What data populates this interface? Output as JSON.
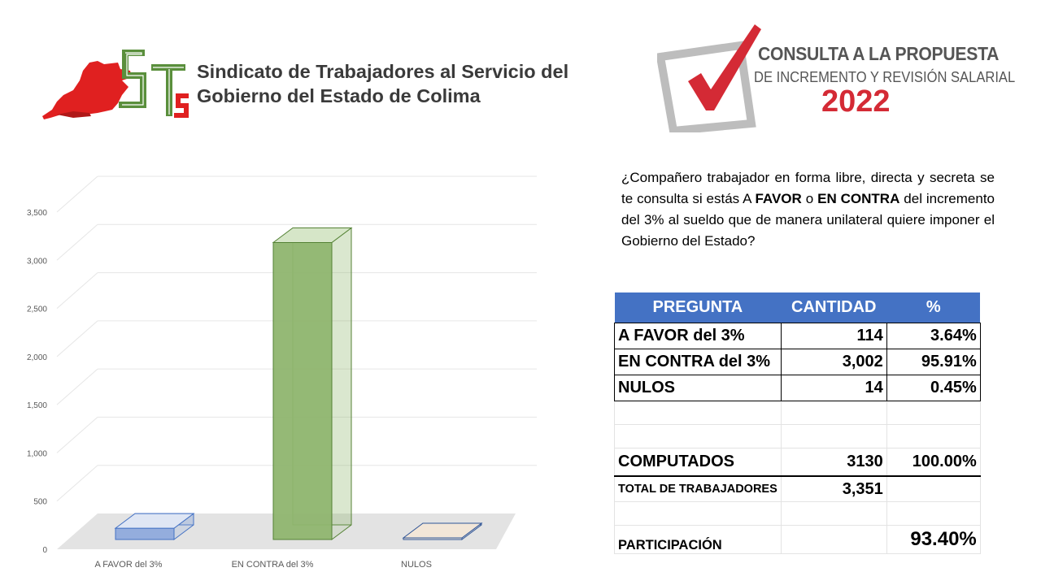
{
  "header": {
    "union_name_line1": "Sindicato de Trabajadores al Servicio del",
    "union_name_line2": "Gobierno del Estado de Colima",
    "campaign_line1": "CONSULTA A LA PROPUESTA",
    "campaign_line2": "DE INCREMENTO Y REVISIÓN SALARIAL",
    "campaign_year": "2022",
    "logo_icon": "union-logo-icon",
    "check_icon": "checkbox-check-icon"
  },
  "question": {
    "part1": "¿Compañero trabajador en forma libre, directa y secreta se te consulta si estás A ",
    "bold1": "FAVOR",
    "part2": " o ",
    "bold2": "EN CONTRA",
    "part3": " del incremento del 3% al sueldo que de manera unilateral  quiere imponer el Gobierno del Estado?"
  },
  "table": {
    "headers": [
      "PREGUNTA",
      "CANTIDAD",
      "%"
    ],
    "rows": [
      {
        "label": "A FAVOR del 3%",
        "count": "114",
        "pct": "3.64%"
      },
      {
        "label": "EN CONTRA del 3%",
        "count": "3,002",
        "pct": "95.91%"
      },
      {
        "label": "NULOS",
        "count": "14",
        "pct": "0.45%"
      }
    ],
    "computed": {
      "label": "COMPUTADOS",
      "count": "3130",
      "pct": "100.00%"
    },
    "total": {
      "label": "TOTAL DE TRABAJADORES",
      "count": "3,351"
    },
    "participation": {
      "label": "PARTICIPACIÓN",
      "pct": "93.40%"
    }
  },
  "colors": {
    "header_blue": "#4472c4",
    "bar_blue": "#8faadc",
    "bar_green": "#8fb56f",
    "nulos_fill": "#f2e6d8",
    "year_red": "#d42a35",
    "logo_red": "#e02020",
    "logo_green": "#5a8f3c"
  },
  "chart_data": {
    "type": "bar",
    "style": "3d-column",
    "categories": [
      "A FAVOR del 3%",
      "EN CONTRA del 3%",
      "NULOS"
    ],
    "values": [
      114,
      3002,
      14
    ],
    "ylim": [
      0,
      3500
    ],
    "yticks": [
      "0",
      "500",
      "1,000",
      "1,500",
      "2,000",
      "2,500",
      "3,000",
      "3,500"
    ],
    "grid": true,
    "legend": "none"
  }
}
